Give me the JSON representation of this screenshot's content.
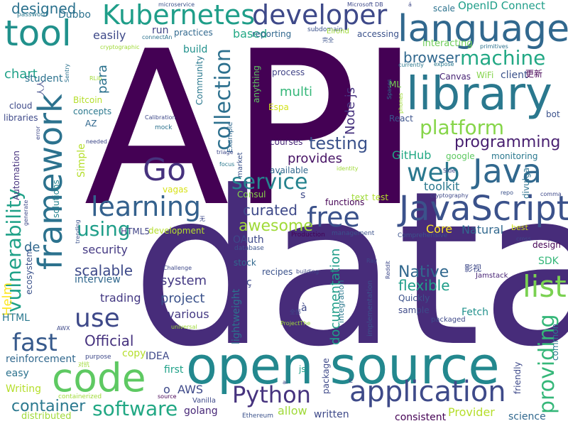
{
  "words": [
    {
      "text": "API",
      "color": "#440154"
    },
    {
      "text": "data",
      "color": "#472c7a"
    },
    {
      "text": "open source",
      "color": "#23888e"
    },
    {
      "text": "library",
      "color": "#2a788e"
    },
    {
      "text": "language",
      "color": "#31688e"
    },
    {
      "text": "JavaScript",
      "color": "#3b528b"
    },
    {
      "text": "code",
      "color": "#5ec962"
    },
    {
      "text": "framework",
      "color": "#2c728e"
    },
    {
      "text": "tool",
      "color": "#21918c"
    },
    {
      "text": "developer",
      "color": "#3e4989"
    },
    {
      "text": "Kubernetes",
      "color": "#1f9e89"
    },
    {
      "text": "Java",
      "color": "#31688e"
    },
    {
      "text": "application",
      "color": "#3e4a89"
    },
    {
      "text": "Go",
      "color": "#46327e"
    },
    {
      "text": "list",
      "color": "#7ad151"
    },
    {
      "text": "web",
      "color": "#2a788e"
    },
    {
      "text": "free",
      "color": "#3b528b"
    },
    {
      "text": "learning",
      "color": "#34618d"
    },
    {
      "text": "software",
      "color": "#22a884"
    },
    {
      "text": "Python",
      "color": "#46337e"
    },
    {
      "text": "providing",
      "color": "#35b779"
    },
    {
      "text": "service",
      "color": "#25838e"
    },
    {
      "text": "use",
      "color": "#3e4989"
    },
    {
      "text": "fast",
      "color": "#375a8c"
    },
    {
      "text": "vulnerability",
      "color": "#1fa188"
    },
    {
      "text": "collection",
      "color": "#2d708e"
    },
    {
      "text": "platform",
      "color": "#86d549"
    },
    {
      "text": "machine",
      "color": "#22a884"
    },
    {
      "text": "using",
      "color": "#1f9e89"
    },
    {
      "text": "container",
      "color": "#2a788e"
    },
    {
      "text": "testing",
      "color": "#3b528b"
    },
    {
      "text": "programming",
      "color": "#481f70"
    },
    {
      "text": "awesome",
      "color": "#a0da39"
    },
    {
      "text": "curated",
      "color": "#3e4989"
    },
    {
      "text": "Native",
      "color": "#31688e"
    },
    {
      "text": "scalable",
      "color": "#3e4a89"
    },
    {
      "text": "documentation",
      "color": "#1f9e89"
    },
    {
      "text": "Official",
      "color": "#46327e"
    },
    {
      "text": "project",
      "color": "#3b528b"
    },
    {
      "text": "system",
      "color": "#443983"
    },
    {
      "text": "flexible",
      "color": "#1f9e89"
    },
    {
      "text": "browser",
      "color": "#31688e"
    },
    {
      "text": "designed",
      "color": "#2c728e"
    },
    {
      "text": "Helm",
      "color": "#fde725"
    },
    {
      "text": "chart",
      "color": "#1fa188"
    },
    {
      "text": "multi",
      "color": "#35b779"
    },
    {
      "text": "provides",
      "color": "#471365"
    },
    {
      "text": "security",
      "color": "#443983"
    },
    {
      "text": "trading",
      "color": "#443983"
    },
    {
      "text": "interview",
      "color": "#31688e"
    },
    {
      "text": "various",
      "color": "#443983"
    },
    {
      "text": "GitHub",
      "color": "#22a884"
    },
    {
      "text": "toolkit",
      "color": "#2a788e"
    },
    {
      "text": "Node js",
      "color": "#46327e"
    },
    {
      "text": "lightweight",
      "color": "#2c728e"
    },
    {
      "text": "Natural",
      "color": "#31688e"
    },
    {
      "text": "Core",
      "color": "#fde725"
    },
    {
      "text": "Fetch",
      "color": "#21918c"
    },
    {
      "text": "SDK",
      "color": "#35b779"
    },
    {
      "text": "easily",
      "color": "#3e4989"
    },
    {
      "text": "based",
      "color": "#22a884"
    },
    {
      "text": "para",
      "color": "#2c728e"
    },
    {
      "text": "reinforcement",
      "color": "#31688e"
    },
    {
      "text": "easy",
      "color": "#2c728e"
    },
    {
      "text": "HTML5",
      "color": "#414487"
    },
    {
      "text": "de",
      "color": "#31688e"
    },
    {
      "text": "student",
      "color": "#2c728e"
    },
    {
      "text": "ecosystem",
      "color": "#3b528b"
    },
    {
      "text": "OpenID Connect",
      "color": "#1f9e89"
    },
    {
      "text": "reporting",
      "color": "#31688e"
    },
    {
      "text": "accessing",
      "color": "#3b528b"
    },
    {
      "text": "interacting",
      "color": "#6ece58"
    },
    {
      "text": "practices",
      "color": "#31688e"
    },
    {
      "text": "run",
      "color": "#414487"
    },
    {
      "text": "build",
      "color": "#21918c"
    },
    {
      "text": "client",
      "color": "#3b528b"
    },
    {
      "text": "process",
      "color": "#414487"
    },
    {
      "text": "monitoring",
      "color": "#2a788e"
    },
    {
      "text": "google",
      "color": "#5ec962"
    },
    {
      "text": "bot",
      "color": "#3b528b"
    },
    {
      "text": "Canvas",
      "color": "#482475"
    },
    {
      "text": "WiFi",
      "color": "#84d44b"
    },
    {
      "text": "React",
      "color": "#3b528b"
    },
    {
      "text": "ML",
      "color": "#7ad151"
    },
    {
      "text": "Espa",
      "color": "#d2e21b"
    },
    {
      "text": "courses",
      "color": "#482878"
    },
    {
      "text": "available",
      "color": "#31688e"
    },
    {
      "text": "test",
      "color": "#b5de2b"
    },
    {
      "text": "functions",
      "color": "#440154"
    },
    {
      "text": "development",
      "color": "#b5de2b"
    },
    {
      "text": "Consul",
      "color": "#86d549"
    },
    {
      "text": "vagas",
      "color": "#d8e219"
    },
    {
      "text": "solutions",
      "color": "#25838e"
    },
    {
      "text": "Automation",
      "color": "#46327e"
    },
    {
      "text": "Simple",
      "color": "#b5de2b"
    },
    {
      "text": "concepts",
      "color": "#2a788e"
    },
    {
      "text": "Bitcoin",
      "color": "#b5de2b"
    },
    {
      "text": "AZ",
      "color": "#31688e"
    },
    {
      "text": "libraries",
      "color": "#3e4989"
    },
    {
      "text": "cloud",
      "color": "#3e4a89"
    },
    {
      "text": "Community",
      "color": "#2a788e"
    },
    {
      "text": "Example",
      "color": "#31688e"
    },
    {
      "text": "market",
      "color": "#3b528b"
    },
    {
      "text": "anything",
      "color": "#5ec962"
    },
    {
      "text": "recipes",
      "color": "#3b528b"
    },
    {
      "text": "stock",
      "color": "#31688e"
    },
    {
      "text": "integration",
      "color": "#2a788e"
    },
    {
      "text": "sample",
      "color": "#3e4a89"
    },
    {
      "text": "Quickly",
      "color": "#3b528b"
    },
    {
      "text": "packaged",
      "color": "#3e4989"
    },
    {
      "text": "implementation",
      "color": "#3b528b"
    },
    {
      "text": "design",
      "color": "#440154"
    },
    {
      "text": "best",
      "color": "#d2e21b"
    },
    {
      "text": "Comprehensive",
      "color": "#3b528b"
    },
    {
      "text": "Jamstack",
      "color": "#482475"
    },
    {
      "text": "Production",
      "color": "#440154"
    },
    {
      "text": "management",
      "color": "#3b528b"
    },
    {
      "text": "database",
      "color": "#3b528b"
    },
    {
      "text": "OAuth",
      "color": "#3e4989"
    },
    {
      "text": "HTML",
      "color": "#2a788e"
    },
    {
      "text": "first",
      "color": "#1fa188"
    },
    {
      "text": "IDEA",
      "color": "#3e4989"
    },
    {
      "text": "copy",
      "color": "#b5de2b"
    },
    {
      "text": "AWS",
      "color": "#3e4989"
    },
    {
      "text": "o",
      "color": "#3e4989"
    },
    {
      "text": "Vanilla",
      "color": "#3e4989"
    },
    {
      "text": "golang",
      "color": "#482878"
    },
    {
      "text": "allow",
      "color": "#a0da39"
    },
    {
      "text": "written",
      "color": "#3e4989"
    },
    {
      "text": "Provider",
      "color": "#b5de2b"
    },
    {
      "text": "consistent",
      "color": "#440154"
    },
    {
      "text": "science",
      "color": "#31688e"
    },
    {
      "text": "friendly",
      "color": "#3e4989"
    },
    {
      "text": "common",
      "color": "#2a788e"
    },
    {
      "text": "package",
      "color": "#3e4989"
    },
    {
      "text": "js",
      "color": "#1f9e89"
    },
    {
      "text": "Writing",
      "color": "#b5de2b"
    },
    {
      "text": "distributed",
      "color": "#a0da39"
    },
    {
      "text": "containerized",
      "color": "#a0da39"
    },
    {
      "text": "purpose",
      "color": "#3e4989"
    },
    {
      "text": "source",
      "color": "#440154"
    },
    {
      "text": "Ethereum",
      "color": "#3b528b"
    },
    {
      "text": "password",
      "color": "#2a788e"
    },
    {
      "text": "Dubbo",
      "color": "#2c728e"
    },
    {
      "text": "microservice",
      "color": "#3b528b"
    },
    {
      "text": "subdomain",
      "color": "#3b528b"
    },
    {
      "text": "Microsoft DB",
      "color": "#3e4989"
    },
    {
      "text": "scale",
      "color": "#2c728e"
    },
    {
      "text": "connectAn",
      "color": "#2c728e"
    },
    {
      "text": "cryptographic",
      "color": "#a0da39"
    },
    {
      "text": "Elrond",
      "color": "#a0da39"
    },
    {
      "text": "完全",
      "color": "#3b528b"
    },
    {
      "text": "primitives",
      "color": "#2c728e"
    },
    {
      "text": "expose",
      "color": "#2a788e"
    },
    {
      "text": "currently",
      "color": "#2a788e"
    },
    {
      "text": "更新",
      "color": "#440154"
    },
    {
      "text": "人人",
      "color": "#3e4989"
    },
    {
      "text": "Sentry",
      "color": "#2c728e"
    },
    {
      "text": "RLib",
      "color": "#a0da39"
    },
    {
      "text": "phones",
      "color": "#a0da39"
    },
    {
      "text": "Spaces",
      "color": "#2c728e"
    },
    {
      "text": "Calibration",
      "color": "#3e4989"
    },
    {
      "text": "mock",
      "color": "#2c728e"
    },
    {
      "text": "needed",
      "color": "#3e4989"
    },
    {
      "text": "error",
      "color": "#3e4989"
    },
    {
      "text": "triage",
      "color": "#3e4989"
    },
    {
      "text": "focus",
      "color": "#2a788e"
    },
    {
      "text": "identity",
      "color": "#a0da39"
    },
    {
      "text": "Side",
      "color": "#3e4989"
    },
    {
      "text": "repo",
      "color": "#3b528b"
    },
    {
      "text": "cryptography",
      "color": "#3e4989"
    },
    {
      "text": "comma",
      "color": "#3e4989"
    },
    {
      "text": "divulga",
      "color": "#2c728e"
    },
    {
      "text": "generate",
      "color": "#3e4989"
    },
    {
      "text": "trending",
      "color": "#3b528b"
    },
    {
      "text": "无",
      "color": "#3e4989"
    },
    {
      "text": "text",
      "color": "#a0da39"
    },
    {
      "text": "Challenge",
      "color": "#3e4989"
    },
    {
      "text": "building",
      "color": "#3e4989"
    },
    {
      "text": "Ray",
      "color": "#3e4989"
    },
    {
      "text": "Reddit",
      "color": "#3e4989"
    },
    {
      "text": "cross",
      "color": "#3e4989"
    },
    {
      "text": "影视",
      "color": "#3e4989"
    },
    {
      "text": "全部",
      "color": "#3e4989"
    },
    {
      "text": "ProjectThe",
      "color": "#a0da39"
    },
    {
      "text": "universal",
      "color": "#a0da39"
    },
    {
      "text": "AWX",
      "color": "#3e4989"
    },
    {
      "text": "对抗",
      "color": "#a0da39"
    },
    {
      "text": "ai",
      "color": "#3e4989"
    },
    {
      "text": "e",
      "color": "#3e4989"
    },
    {
      "text": "ç",
      "color": "#3e4989"
    },
    {
      "text": "à",
      "color": "#3e4989"
    },
    {
      "text": "á",
      "color": "#3e4989"
    },
    {
      "text": "s",
      "color": "#3e4989"
    }
  ]
}
